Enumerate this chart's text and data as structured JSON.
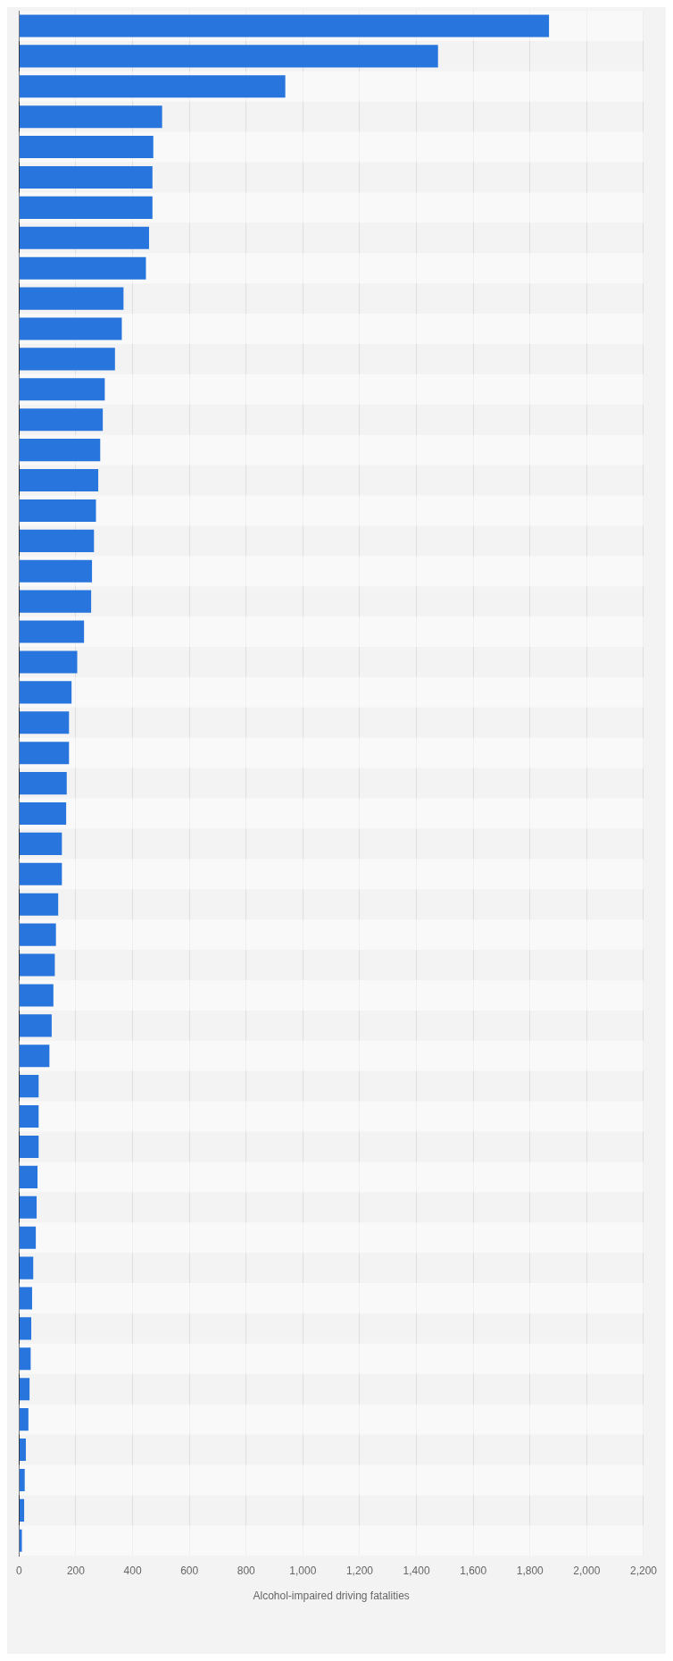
{
  "chart_data": {
    "type": "bar",
    "orientation": "horizontal",
    "xlabel": "Alcohol-impaired driving fatalities",
    "categories": [
      null,
      null,
      null,
      null,
      null,
      null,
      null,
      null,
      null,
      null,
      null,
      null,
      null,
      null,
      null,
      null,
      null,
      null,
      null,
      null,
      null,
      null,
      null,
      null,
      null,
      null,
      null,
      null,
      null,
      null,
      null,
      null,
      null,
      null,
      null,
      null,
      null,
      null,
      null,
      null,
      null,
      null,
      null,
      null,
      null,
      null,
      null,
      null,
      null,
      null,
      null
    ],
    "values": [
      1867,
      1476,
      938,
      504,
      473,
      470,
      470,
      458,
      447,
      368,
      362,
      338,
      302,
      295,
      286,
      279,
      271,
      264,
      257,
      254,
      229,
      205,
      185,
      176,
      176,
      168,
      166,
      151,
      151,
      138,
      130,
      126,
      121,
      115,
      107,
      69,
      69,
      69,
      65,
      62,
      59,
      50,
      46,
      43,
      41,
      37,
      33,
      24,
      20,
      18,
      10
    ],
    "color": "#2876dd",
    "xlim": [
      0,
      2200
    ],
    "xticks": [
      0,
      200,
      400,
      600,
      800,
      {
        "value": 1000,
        "label": "1,000"
      },
      {
        "value": 1200,
        "label": "1,200"
      },
      {
        "value": 1400,
        "label": "1,400"
      },
      {
        "value": 1600,
        "label": "1,600"
      },
      {
        "value": 1800,
        "label": "1,800"
      },
      {
        "value": 2000,
        "label": "2,000"
      },
      {
        "value": 2200,
        "label": "2,200"
      }
    ],
    "grid": "x",
    "tick_labels": "x"
  }
}
